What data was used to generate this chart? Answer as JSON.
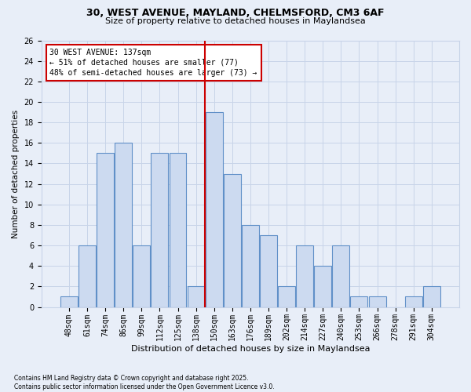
{
  "title1": "30, WEST AVENUE, MAYLAND, CHELMSFORD, CM3 6AF",
  "title2": "Size of property relative to detached houses in Maylandsea",
  "xlabel": "Distribution of detached houses by size in Maylandsea",
  "ylabel": "Number of detached properties",
  "categories": [
    "48sqm",
    "61sqm",
    "74sqm",
    "86sqm",
    "99sqm",
    "112sqm",
    "125sqm",
    "138sqm",
    "150sqm",
    "163sqm",
    "176sqm",
    "189sqm",
    "202sqm",
    "214sqm",
    "227sqm",
    "240sqm",
    "253sqm",
    "266sqm",
    "278sqm",
    "291sqm",
    "304sqm"
  ],
  "bar_heights": [
    1,
    6,
    15,
    16,
    6,
    15,
    15,
    2,
    19,
    13,
    8,
    7,
    2,
    6,
    4,
    6,
    1,
    1,
    0,
    1,
    2
  ],
  "bar_color": "#ccdaf0",
  "bar_edge_color": "#6090c8",
  "vline_x": 7.5,
  "annotation_text": "30 WEST AVENUE: 137sqm\n← 51% of detached houses are smaller (77)\n48% of semi-detached houses are larger (73) →",
  "annotation_box_facecolor": "#ffffff",
  "annotation_box_edgecolor": "#cc0000",
  "vline_color": "#cc0000",
  "grid_color": "#c8d4e8",
  "background_color": "#e8eef8",
  "footnote": "Contains HM Land Registry data © Crown copyright and database right 2025.\nContains public sector information licensed under the Open Government Licence v3.0.",
  "ylim": [
    0,
    26
  ],
  "yticks": [
    0,
    2,
    4,
    6,
    8,
    10,
    12,
    14,
    16,
    18,
    20,
    22,
    24,
    26
  ],
  "title1_fontsize": 9,
  "title2_fontsize": 8,
  "xlabel_fontsize": 8,
  "ylabel_fontsize": 7.5,
  "tick_fontsize": 7,
  "annot_fontsize": 7,
  "footnote_fontsize": 5.5
}
